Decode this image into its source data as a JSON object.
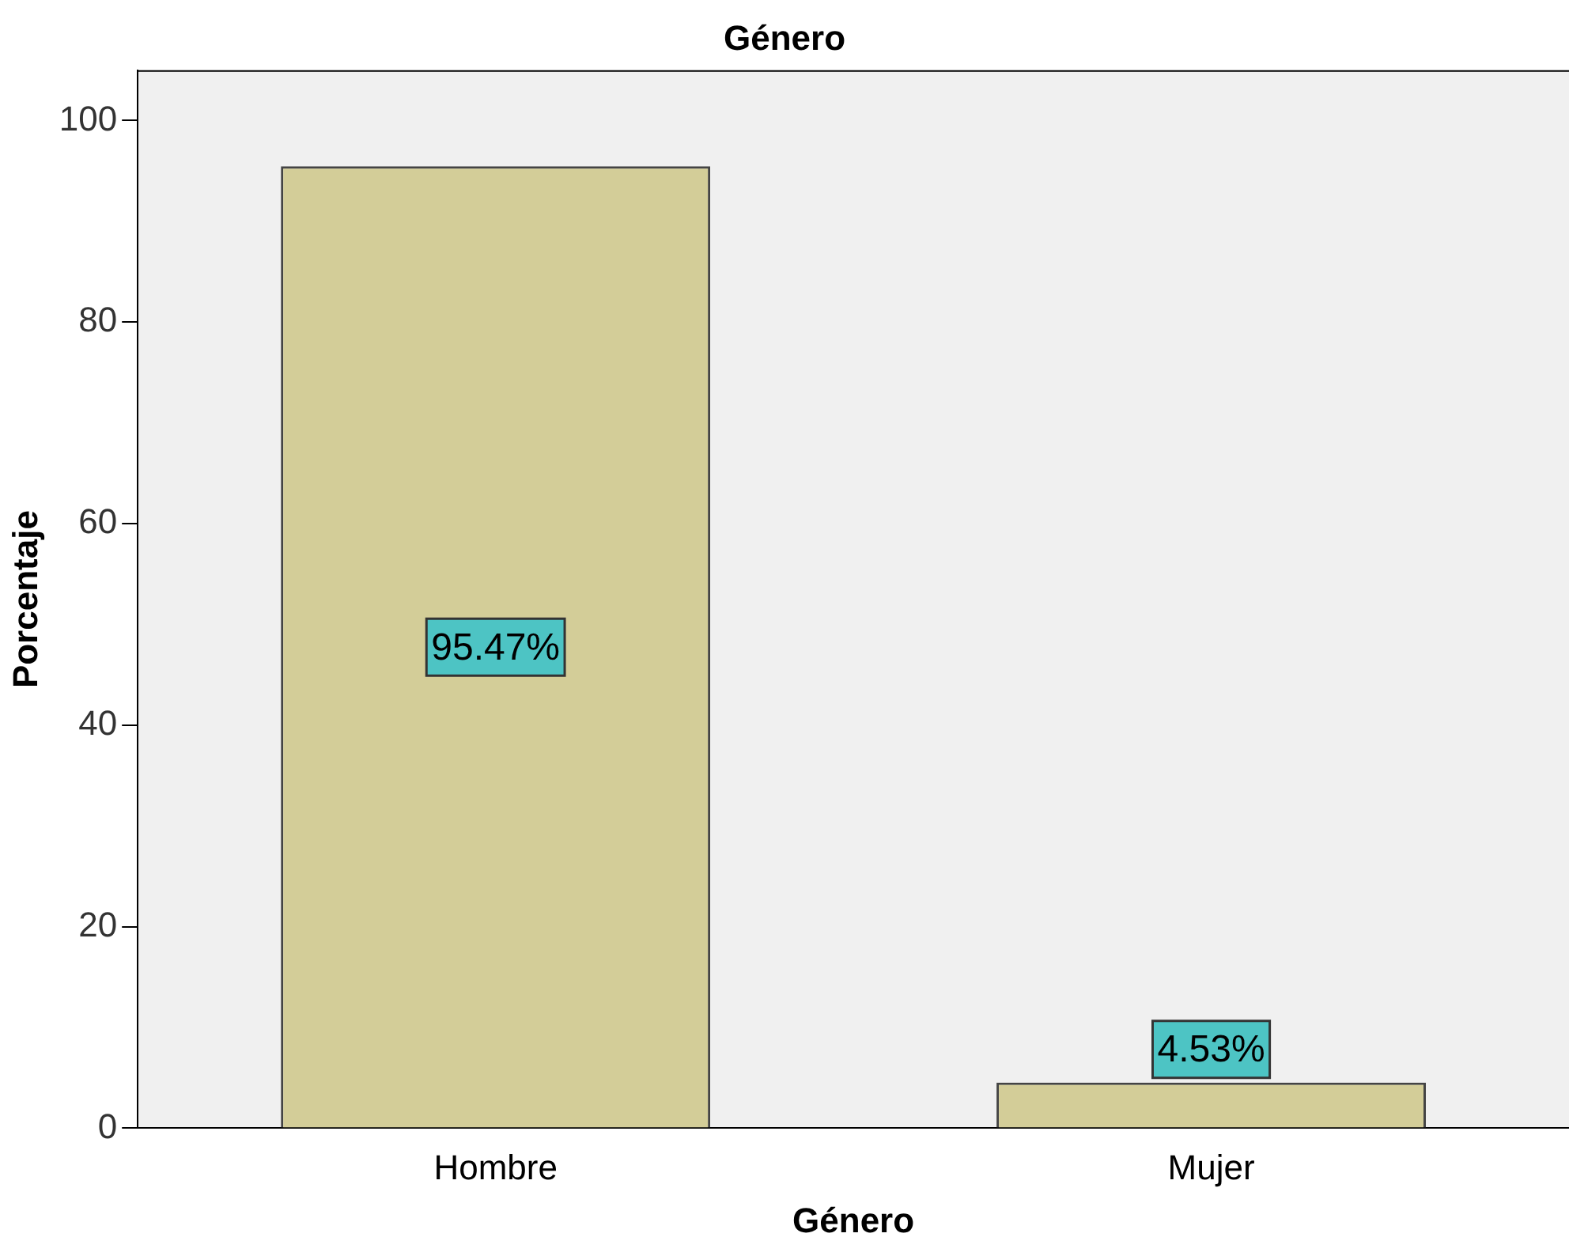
{
  "chart_data": {
    "type": "bar",
    "title": "Género",
    "xlabel": "Género",
    "ylabel": "Porcentaje",
    "categories": [
      "Hombre",
      "Mujer"
    ],
    "values": [
      95.47,
      4.53
    ],
    "value_labels": [
      "95.47%",
      "4.53%"
    ],
    "color": "#d3cd98",
    "ylim": [
      0,
      105
    ],
    "yticks": [
      0,
      20,
      40,
      60,
      80,
      100
    ],
    "grid": false,
    "legend": false
  }
}
